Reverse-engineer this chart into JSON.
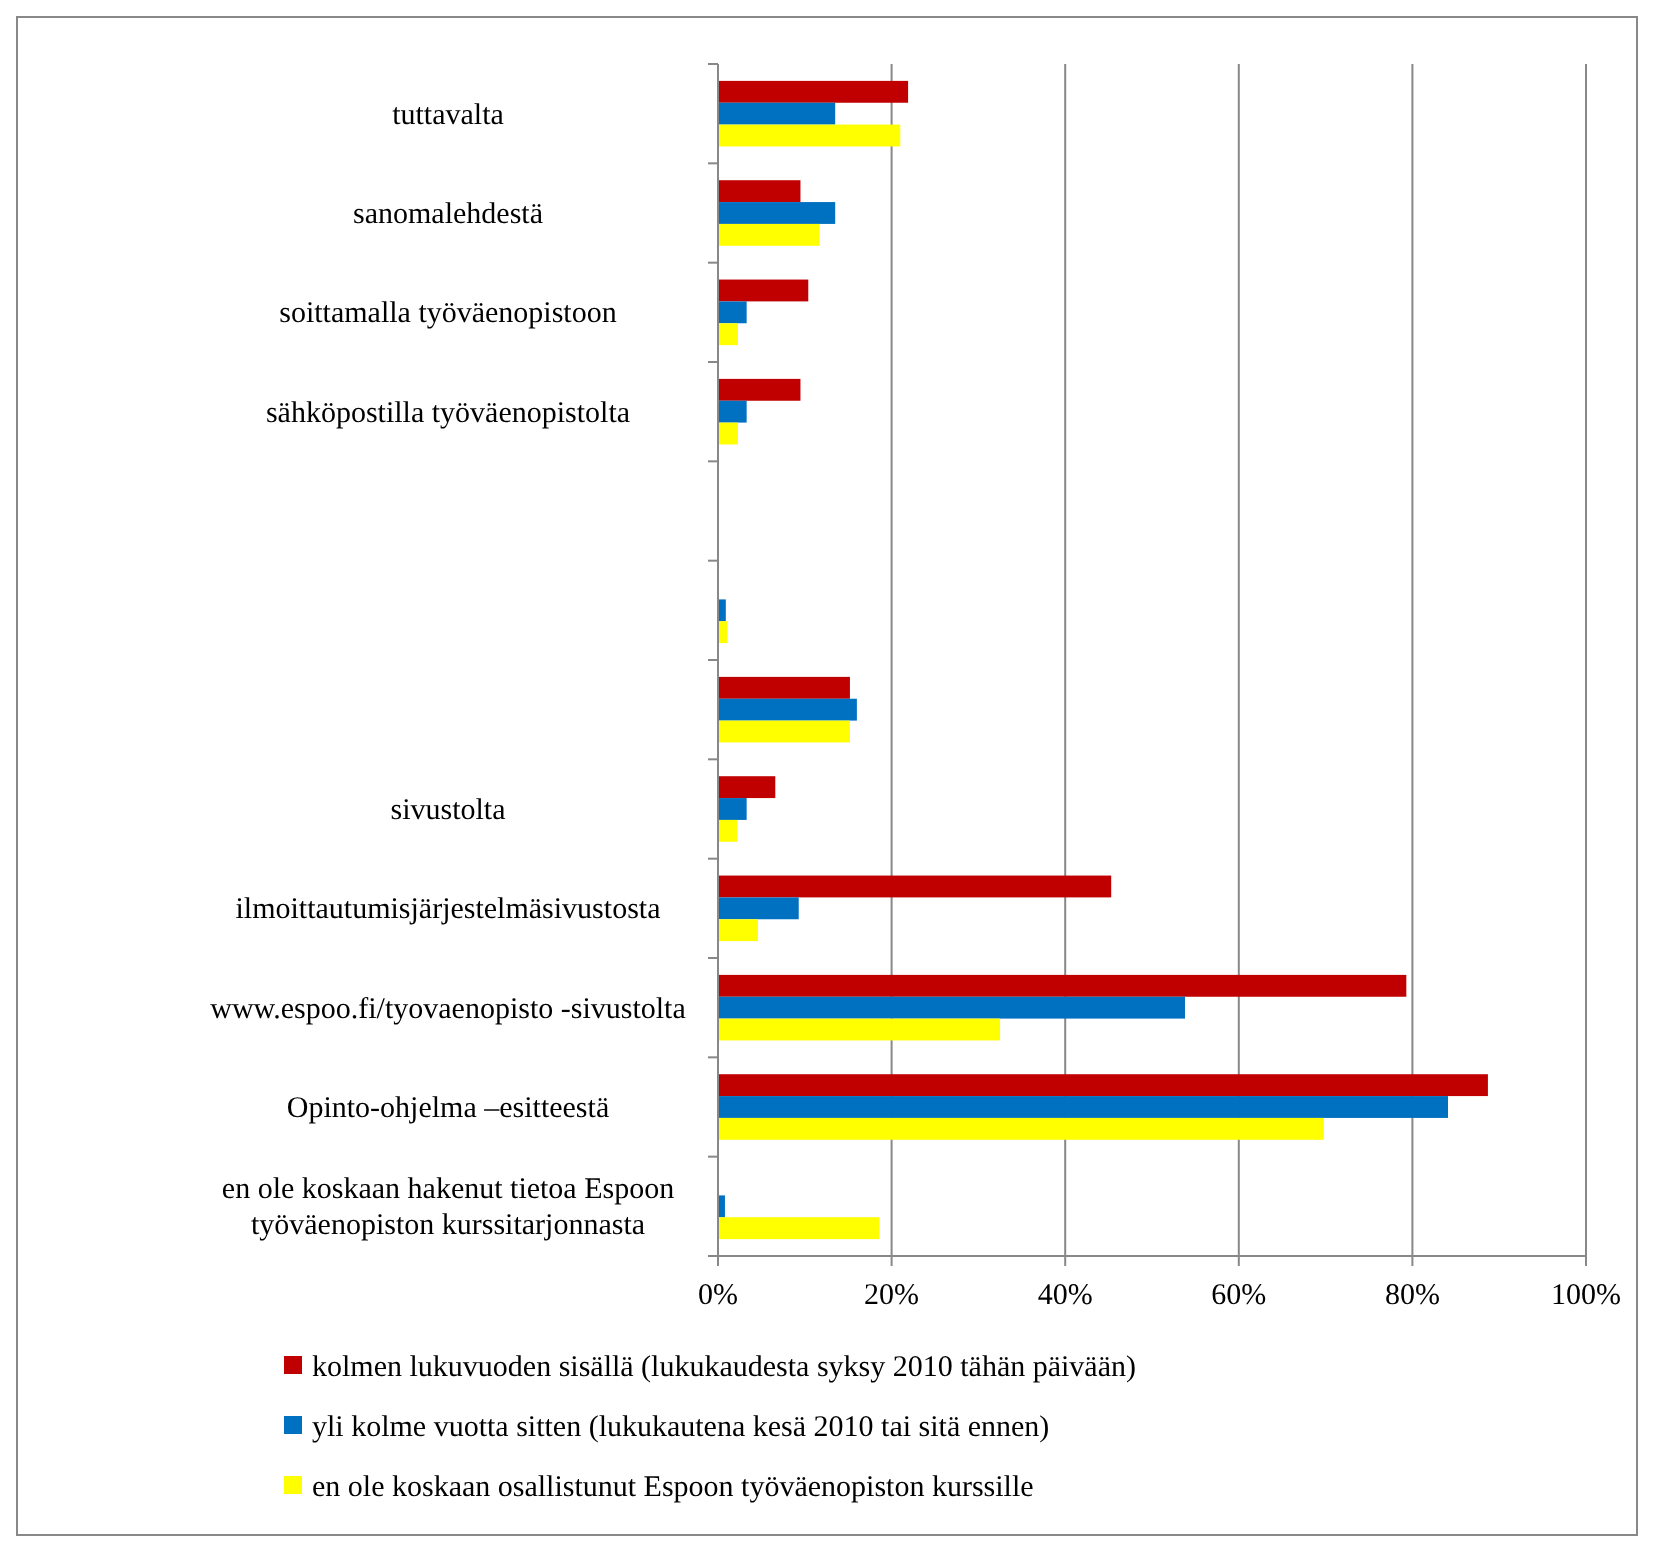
{
  "chart_data": {
    "type": "bar",
    "orientation": "horizontal",
    "categories": [
      "tuttavalta",
      "sanomalehdestä",
      "soittamalla työväenopistoon",
      "sähköpostilla työväenopistolta",
      null,
      null,
      null,
      "sivustolta",
      "ilmoittautumisjärjestelmäsivustosta",
      "www.espoo.fi/tyovaenopisto -sivustolta",
      "Opinto-ohjelma –esitteestä",
      "en ole koskaan hakenut tietoa Espoon työväenopiston kurssitarjonnasta"
    ],
    "series": [
      {
        "name": "kolmen lukuvuoden sisällä (lukukaudesta syksy 2010 tähän päivään)",
        "color": "#c00000",
        "values": [
          21.9,
          9.5,
          10.4,
          9.5,
          0,
          0,
          15.2,
          6.6,
          45.3,
          79.3,
          88.7,
          0
        ]
      },
      {
        "name": "yli kolme vuotta sitten (lukukautena kesä 2010 tai sitä ennen)",
        "color": "#0070c0",
        "values": [
          13.5,
          13.5,
          3.3,
          3.3,
          0,
          0.9,
          16.0,
          3.3,
          9.3,
          53.8,
          84.1,
          0.8
        ]
      },
      {
        "name": "en ole koskaan osallistunut Espoon työväenopiston kurssille",
        "color": "#ffff00",
        "values": [
          21.0,
          11.7,
          2.3,
          2.3,
          0,
          1.1,
          15.2,
          2.2,
          4.6,
          32.5,
          69.8,
          18.6
        ]
      }
    ],
    "xlim": [
      0,
      100
    ],
    "xticks": [
      {
        "value": 0,
        "label": "0%"
      },
      {
        "value": 20,
        "label": "20%"
      },
      {
        "value": 40,
        "label": "40%"
      },
      {
        "value": 60,
        "label": "60%"
      },
      {
        "value": 80,
        "label": "80%"
      },
      {
        "value": 100,
        "label": "100%"
      }
    ],
    "grid": "x",
    "legend": "bottom"
  }
}
